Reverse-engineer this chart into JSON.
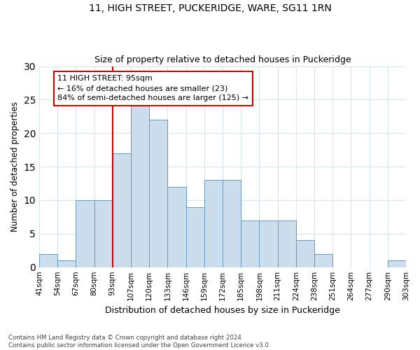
{
  "title1": "11, HIGH STREET, PUCKERIDGE, WARE, SG11 1RN",
  "title2": "Size of property relative to detached houses in Puckeridge",
  "xlabel": "Distribution of detached houses by size in Puckeridge",
  "ylabel": "Number of detached properties",
  "bar_values": [
    2,
    1,
    10,
    10,
    17,
    25,
    22,
    12,
    9,
    13,
    13,
    7,
    7,
    7,
    4,
    2,
    0,
    0,
    0,
    1
  ],
  "bin_labels": [
    "41sqm",
    "54sqm",
    "67sqm",
    "80sqm",
    "93sqm",
    "107sqm",
    "120sqm",
    "133sqm",
    "146sqm",
    "159sqm",
    "172sqm",
    "185sqm",
    "198sqm",
    "211sqm",
    "224sqm",
    "238sqm",
    "251sqm",
    "264sqm",
    "277sqm",
    "290sqm",
    "303sqm"
  ],
  "bar_color": "#ccdded",
  "bar_edge_color": "#6699bb",
  "grid_color": "#d8e4ec",
  "annotation_box_text": "11 HIGH STREET: 95sqm\n← 16% of detached houses are smaller (23)\n84% of semi-detached houses are larger (125) →",
  "red_line_color": "#cc0000",
  "footer_text": "Contains HM Land Registry data © Crown copyright and database right 2024.\nContains public sector information licensed under the Open Government Licence v3.0.",
  "ylim": [
    0,
    30
  ],
  "yticks": [
    0,
    5,
    10,
    15,
    20,
    25,
    30
  ]
}
